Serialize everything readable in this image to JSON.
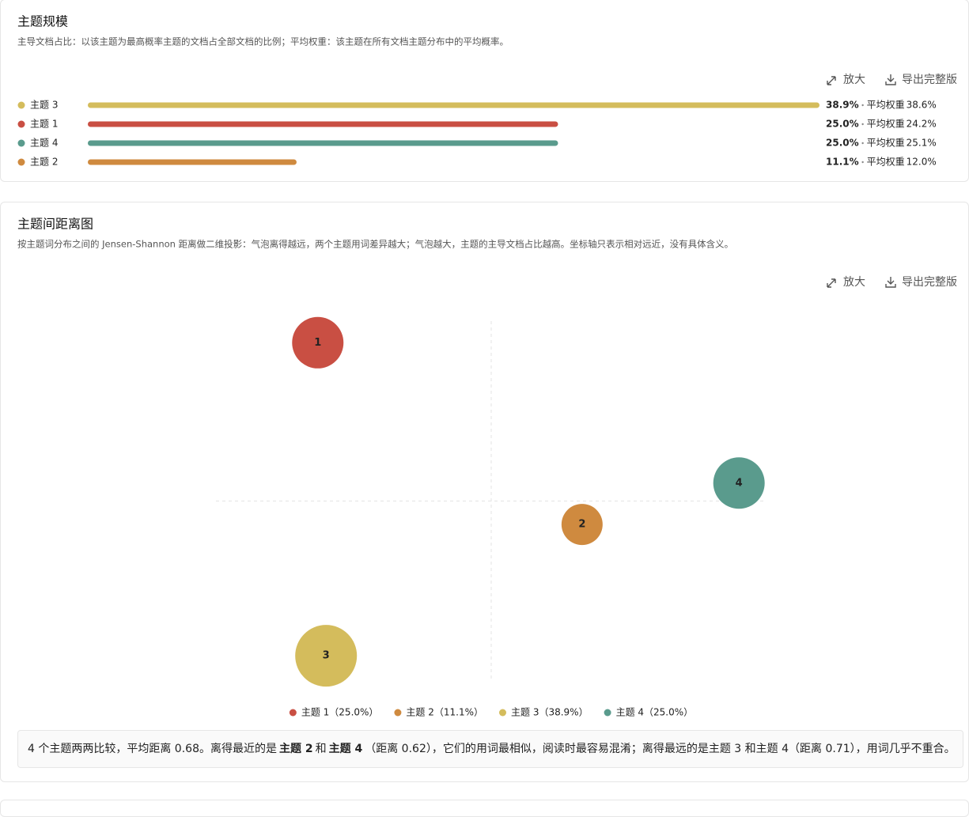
{
  "toolbar": {
    "zoom": "放大",
    "export": "导出完整版"
  },
  "chart_data": [
    {
      "type": "bar",
      "orientation": "horizontal",
      "title": "主题规模",
      "subtitle": "主导文档占比：以该主题为最高概率主题的文档占全部文档的比例；平均权重：该主题在所有文档主题分布中的平均概率。",
      "categories": [
        "主题 3",
        "主题 1",
        "主题 4",
        "主题 2"
      ],
      "values": [
        38.9,
        25.0,
        25.0,
        11.1
      ],
      "value_labels": [
        "38.9%",
        "25.0%",
        "25.0%",
        "11.1%"
      ],
      "colors": [
        "#d4bc5c",
        "#c94f43",
        "#5a9b8d",
        "#cf8a3f"
      ],
      "xlim": [
        0,
        38.9
      ],
      "weight_label": "平均权重",
      "weights": [
        38.6,
        24.2,
        25.1,
        12.0
      ],
      "weight_value_labels": [
        "38.6%",
        "24.2%",
        "25.1%",
        "12.0%"
      ]
    },
    {
      "type": "bubble",
      "title": "主题间距离图",
      "subtitle": "按主题词分布之间的 Jensen-Shannon 距离做二维投影：气泡离得越远，两个主题用词差异越大；气泡越大，主题的主导文档占比越高。坐标轴只表示相对远近，没有具体含义。",
      "categories": [
        "1",
        "2",
        "3",
        "4"
      ],
      "x": [
        -0.63,
        0.33,
        -0.6,
        0.9
      ],
      "y": [
        0.88,
        -0.13,
        -0.86,
        0.1
      ],
      "sizes": [
        25.0,
        11.1,
        38.9,
        25.0
      ],
      "legend_labels": [
        "主题 1（25.0%）",
        "主题 2（11.1%）",
        "主题 3（38.9%）",
        "主题 4（25.0%）"
      ],
      "colors": [
        "#c94f43",
        "#cf8a3f",
        "#d4bc5c",
        "#5a9b8d"
      ],
      "xlim": [
        -1,
        1
      ],
      "ylim": [
        -1,
        1
      ]
    }
  ],
  "summary": [
    "4 个主题两两比较，平均距离 0.68。离得最近的是",
    "主题 2",
    "和",
    "主题 4",
    "（距离 0.62），它们的用词最相似，阅读时最容易混淆；离得最远的是主题 3 和主题 4（距离 0.71），用词几乎不重合。"
  ]
}
